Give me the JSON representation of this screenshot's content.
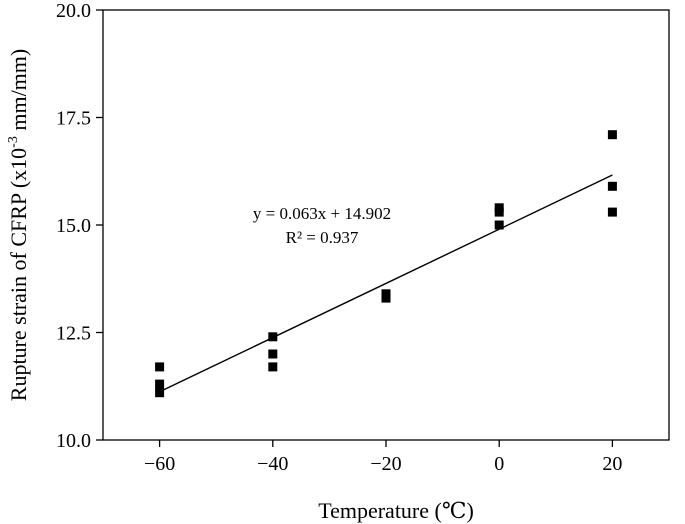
{
  "chart_data": {
    "type": "scatter",
    "xlabel": "Temperature (℃)",
    "ylabel_main": "Rupture strain of CFRP (x10",
    "ylabel_sup": "-3",
    "ylabel_tail": " mm/mm)",
    "xlim": [
      -70,
      30
    ],
    "ylim": [
      10.0,
      20.0
    ],
    "xticks": [
      -60,
      -40,
      -20,
      0,
      20
    ],
    "xtick_labels": [
      "−60",
      "−40",
      "−20",
      "0",
      "20"
    ],
    "yticks": [
      10.0,
      12.5,
      15.0,
      17.5,
      20.0
    ],
    "ytick_labels": [
      "10.0",
      "12.5",
      "15.0",
      "17.5",
      "20.0"
    ],
    "grid": false,
    "legend": "none",
    "series": [
      {
        "marker": "square",
        "points": [
          {
            "x": -60,
            "y": 11.7
          },
          {
            "x": -60,
            "y": 11.3
          },
          {
            "x": -60,
            "y": 11.1
          },
          {
            "x": -40,
            "y": 12.4
          },
          {
            "x": -40,
            "y": 12.0
          },
          {
            "x": -40,
            "y": 11.7
          },
          {
            "x": -20,
            "y": 13.4
          },
          {
            "x": -20,
            "y": 13.3
          },
          {
            "x": 0,
            "y": 15.4
          },
          {
            "x": 0,
            "y": 15.3
          },
          {
            "x": 0,
            "y": 15.0
          },
          {
            "x": 20,
            "y": 17.1
          },
          {
            "x": 20,
            "y": 15.9
          },
          {
            "x": 20,
            "y": 15.3
          }
        ]
      }
    ],
    "fit_line": {
      "slope": 0.063,
      "intercept": 14.902,
      "x_range": [
        -60,
        20
      ]
    },
    "equation_text": "y = 0.063x + 14.902",
    "r2_text": "R² = 0.937",
    "colors": {
      "marker": "#000000",
      "line": "#000000",
      "axis": "#000000"
    }
  }
}
